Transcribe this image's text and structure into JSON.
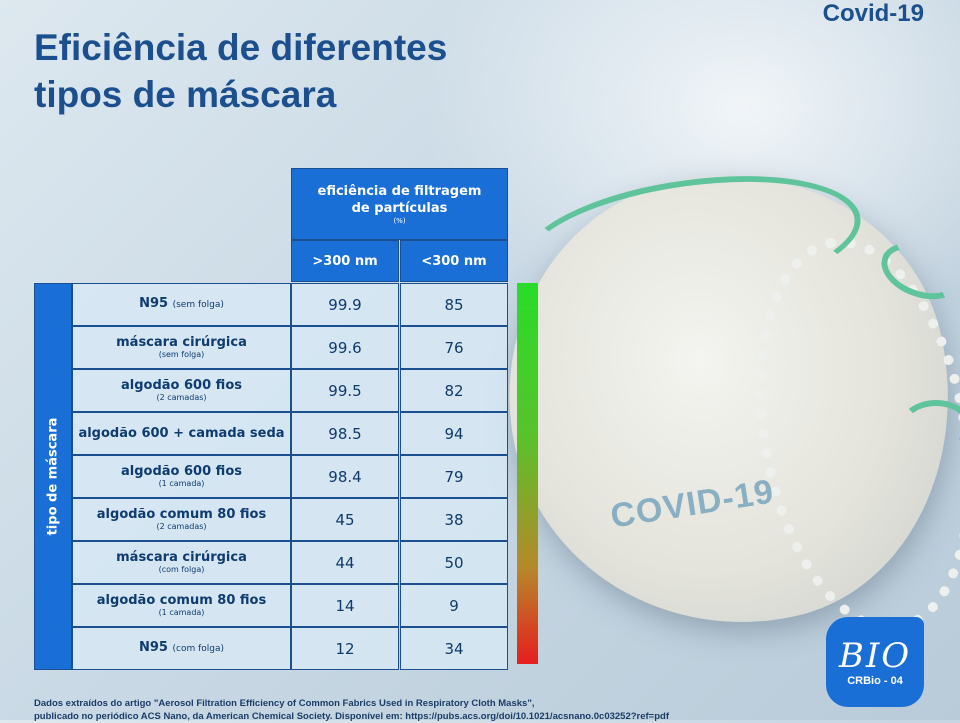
{
  "corner_tag": "Covid-19",
  "title": {
    "line1": "Eficiência de diferentes",
    "line2": "tipos de máscara"
  },
  "table": {
    "header_main": "eficiência de filtragem de partículas",
    "header_unit": "(%)",
    "columns": [
      ">300 nm",
      "<300 nm"
    ],
    "row_group_label": "tipo de máscara",
    "rows": [
      {
        "label": "N95",
        "note": "(sem folga)",
        "note_inline": true,
        "gt300": "99.9",
        "lt300": "85"
      },
      {
        "label": "máscara cirúrgica",
        "note": "(sem folga)",
        "note_inline": false,
        "gt300": "99.6",
        "lt300": "76"
      },
      {
        "label": "algodão 600 fios",
        "note": "(2 camadas)",
        "note_inline": false,
        "gt300": "99.5",
        "lt300": "82"
      },
      {
        "label": "algodão 600 + camada seda",
        "note": "",
        "note_inline": false,
        "gt300": "98.5",
        "lt300": "94"
      },
      {
        "label": "algodão 600 fios",
        "note": "(1 camada)",
        "note_inline": false,
        "gt300": "98.4",
        "lt300": "79"
      },
      {
        "label": "algodão comum 80 fios",
        "note": "(2 camadas)",
        "note_inline": false,
        "gt300": "45",
        "lt300": "38"
      },
      {
        "label": "máscara cirúrgica",
        "note": "(com folga)",
        "note_inline": false,
        "gt300": "44",
        "lt300": "50"
      },
      {
        "label": "algodão comum 80 fios",
        "note": "(1 camada)",
        "note_inline": false,
        "gt300": "14",
        "lt300": "9"
      },
      {
        "label": "N95",
        "note": "(com folga)",
        "note_inline": true,
        "gt300": "12",
        "lt300": "34"
      }
    ]
  },
  "gradient": {
    "top_color": "#27dc2a",
    "bottom_color": "#e61e1e"
  },
  "mask_text": "COVID-19",
  "source": {
    "line1": "Dados extraídos do artigo \"Aerosol Filtration Efficiency of Common Fabrics Used in Respiratory Cloth Masks\",",
    "line2": "publicado no periódico ACS Nano, da American Chemical Society. Disponível em: https://pubs.acs.org/doi/10.1021/acsnano.0c03252?ref=pdf"
  },
  "logo": {
    "mark": "BIO",
    "org": "CRBio - 04"
  },
  "colors": {
    "brand_blue": "#1c4f8e",
    "header_blue": "#1a6fd6",
    "cell_bg": "#d7e8f5"
  }
}
